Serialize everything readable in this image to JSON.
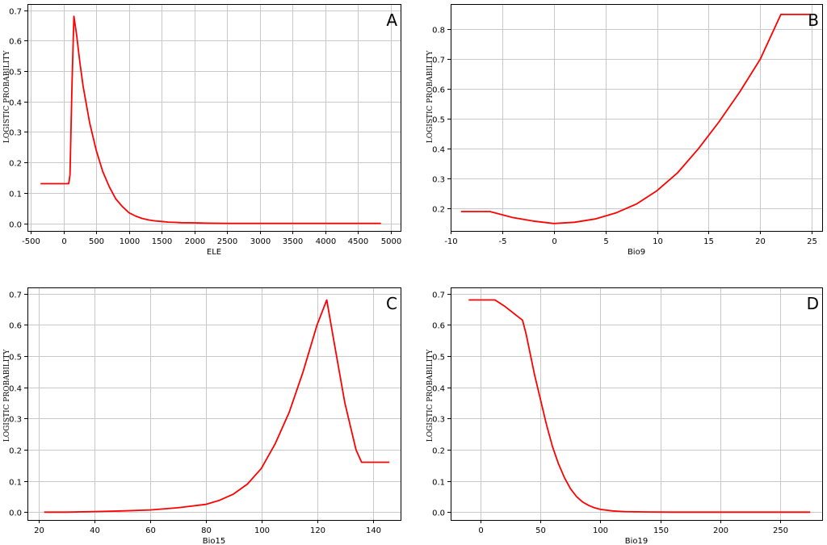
{
  "chart_data": [
    {
      "type": "line",
      "panel_label": "A",
      "xlabel": "ELE",
      "ylabel": "LOGISTIC PROBABILITY",
      "xlim": [
        -550,
        5150
      ],
      "ylim": [
        -0.025,
        0.72
      ],
      "xticks": [
        -500,
        0,
        500,
        1000,
        1500,
        2000,
        2500,
        3000,
        3500,
        4000,
        4500,
        5000
      ],
      "yticks": [
        0.0,
        0.1,
        0.2,
        0.3,
        0.4,
        0.5,
        0.6,
        0.7
      ],
      "ytick_labels": [
        "0.0",
        "0.1",
        "0.2",
        "0.3",
        "0.4",
        "0.5",
        "0.6",
        "0.7"
      ],
      "grid": true,
      "color": "#ff0000",
      "x": [
        -350,
        80,
        100,
        130,
        160,
        200,
        250,
        300,
        400,
        500,
        600,
        700,
        800,
        900,
        1000,
        1100,
        1200,
        1300,
        1400,
        1500,
        1600,
        1700,
        1800,
        2000,
        2100,
        2200,
        2500,
        3000,
        3500,
        4000,
        4500,
        4850
      ],
      "y": [
        0.13,
        0.13,
        0.16,
        0.45,
        0.68,
        0.62,
        0.53,
        0.45,
        0.33,
        0.24,
        0.17,
        0.12,
        0.08,
        0.055,
        0.035,
        0.024,
        0.016,
        0.011,
        0.008,
        0.006,
        0.004,
        0.003,
        0.002,
        0.0015,
        0.001,
        0.0005,
        0.0,
        0.0,
        0.0,
        0.0,
        0.0,
        0.0
      ]
    },
    {
      "type": "line",
      "panel_label": "B",
      "xlabel": "Bio9",
      "ylabel": "LOGISTIC PROBABILITY",
      "xlim": [
        -10,
        26
      ],
      "ylim": [
        0.125,
        0.885
      ],
      "xticks": [
        -10,
        -5,
        0,
        5,
        10,
        15,
        20,
        25
      ],
      "yticks": [
        0.2,
        0.3,
        0.4,
        0.5,
        0.6,
        0.7,
        0.8
      ],
      "ytick_labels": [
        "0.2",
        "0.3",
        "0.4",
        "0.5",
        "0.6",
        "0.7",
        "0.8"
      ],
      "grid": true,
      "color": "#ff0000",
      "x": [
        -9,
        -6.2,
        -4,
        -2,
        0,
        2,
        4,
        6,
        8,
        10,
        12,
        14,
        16,
        18,
        20,
        22,
        24.8
      ],
      "y": [
        0.19,
        0.19,
        0.17,
        0.158,
        0.15,
        0.154,
        0.165,
        0.185,
        0.215,
        0.26,
        0.32,
        0.4,
        0.49,
        0.59,
        0.7,
        0.85,
        0.85
      ]
    },
    {
      "type": "line",
      "panel_label": "C",
      "xlabel": "Bio15",
      "ylabel": "LOGISTIC PROBABILITY",
      "xlim": [
        16,
        150
      ],
      "ylim": [
        -0.025,
        0.72
      ],
      "xticks": [
        20,
        40,
        60,
        80,
        100,
        120,
        140
      ],
      "yticks": [
        0.0,
        0.1,
        0.2,
        0.3,
        0.4,
        0.5,
        0.6,
        0.7
      ],
      "ytick_labels": [
        "0.0",
        "0.1",
        "0.2",
        "0.3",
        "0.4",
        "0.5",
        "0.6",
        "0.7"
      ],
      "grid": true,
      "color": "#ff0000",
      "x": [
        22,
        30,
        40,
        50,
        60,
        70,
        80,
        85,
        90,
        95,
        100,
        105,
        110,
        115,
        120,
        123.5,
        126,
        130,
        134,
        136,
        146
      ],
      "y": [
        0.0,
        0.0,
        0.002,
        0.004,
        0.007,
        0.014,
        0.025,
        0.038,
        0.058,
        0.09,
        0.14,
        0.22,
        0.32,
        0.45,
        0.6,
        0.68,
        0.55,
        0.35,
        0.2,
        0.16,
        0.16
      ]
    },
    {
      "type": "line",
      "panel_label": "D",
      "xlabel": "Bio19",
      "ylabel": "LOGISTIC PROBABILITY",
      "xlim": [
        -25,
        285
      ],
      "ylim": [
        -0.025,
        0.72
      ],
      "xticks": [
        0,
        50,
        100,
        150,
        200,
        250
      ],
      "yticks": [
        0.0,
        0.1,
        0.2,
        0.3,
        0.4,
        0.5,
        0.6,
        0.7
      ],
      "ytick_labels": [
        "0.0",
        "0.1",
        "0.2",
        "0.3",
        "0.4",
        "0.5",
        "0.6",
        "0.7"
      ],
      "grid": true,
      "color": "#ff0000",
      "x": [
        -10,
        12,
        20,
        30,
        35,
        38,
        45,
        50,
        55,
        60,
        65,
        70,
        75,
        80,
        85,
        90,
        95,
        100,
        110,
        120,
        140,
        160,
        200,
        275
      ],
      "y": [
        0.68,
        0.68,
        0.66,
        0.63,
        0.615,
        0.57,
        0.44,
        0.36,
        0.28,
        0.21,
        0.155,
        0.11,
        0.075,
        0.05,
        0.033,
        0.022,
        0.014,
        0.009,
        0.004,
        0.002,
        0.0005,
        0.0,
        0.0,
        0.0
      ]
    }
  ]
}
